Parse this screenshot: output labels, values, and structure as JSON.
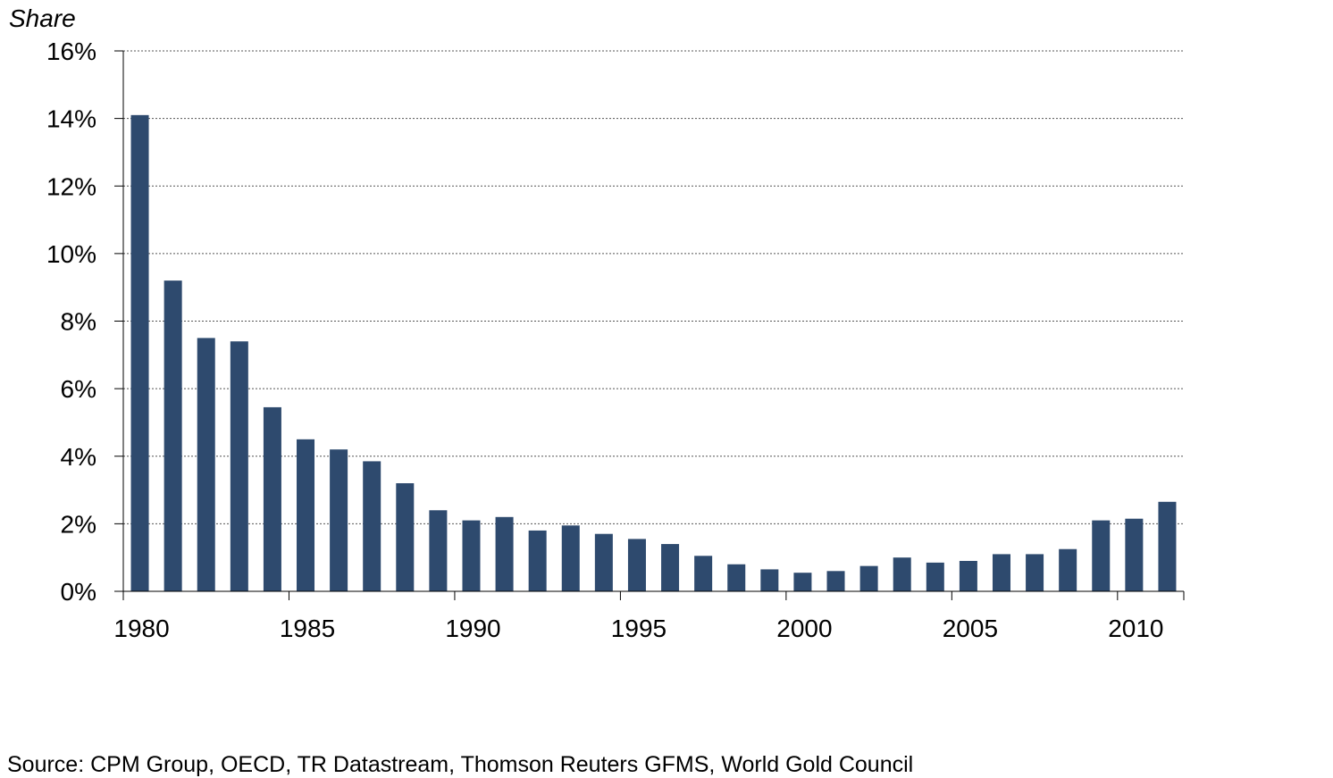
{
  "chart_data": {
    "type": "bar",
    "ylabel": "Share",
    "x": [
      1980,
      1981,
      1982,
      1983,
      1984,
      1985,
      1986,
      1987,
      1988,
      1989,
      1990,
      1991,
      1992,
      1993,
      1994,
      1995,
      1996,
      1997,
      1998,
      1999,
      2000,
      2001,
      2002,
      2003,
      2004,
      2005,
      2006,
      2007,
      2008,
      2009,
      2010,
      2011
    ],
    "values": [
      14.1,
      9.2,
      7.5,
      7.4,
      5.45,
      4.5,
      4.2,
      3.85,
      3.2,
      2.4,
      2.1,
      2.2,
      1.8,
      1.95,
      1.7,
      1.55,
      1.4,
      1.05,
      0.8,
      0.65,
      0.55,
      0.6,
      0.75,
      1.0,
      0.85,
      0.9,
      1.1,
      1.1,
      1.25,
      2.1,
      2.15,
      2.65
    ],
    "ylim": [
      0,
      16
    ],
    "yticks": [
      0,
      2,
      4,
      6,
      8,
      10,
      12,
      14,
      16
    ],
    "ytick_labels": [
      "0%",
      "2%",
      "4%",
      "6%",
      "8%",
      "10%",
      "12%",
      "14%",
      "16%"
    ],
    "xticks": [
      1980,
      1985,
      1990,
      1995,
      2000,
      2005,
      2010
    ],
    "xtick_labels": [
      "1980",
      "1985",
      "1990",
      "1995",
      "2000",
      "2005",
      "2010"
    ],
    "grid": true,
    "legend": "none",
    "bar_color": "#2e4a6e"
  },
  "footer": {
    "source": "Source: CPM Group, OECD, TR Datastream, Thomson Reuters GFMS, World Gold Council"
  }
}
